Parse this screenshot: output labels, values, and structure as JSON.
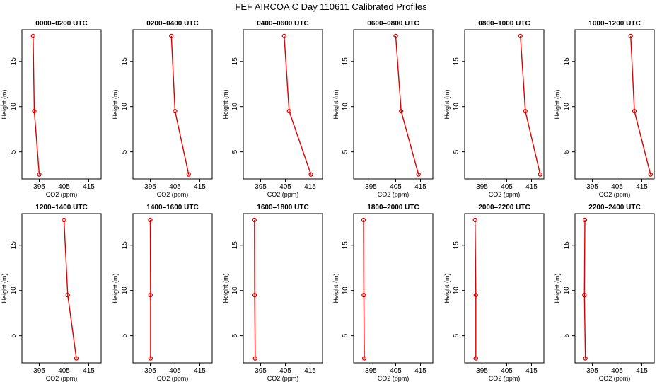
{
  "figure_title": "FEF AIRCOA C  Day 110611  Calibrated Profiles",
  "chart_data": [
    {
      "type": "line",
      "title": "0000–0200 UTC",
      "xlabel": "CO2 (ppm)",
      "ylabel": "Height (m)",
      "xticks": [
        395,
        405,
        415
      ],
      "yticks": [
        5,
        10,
        15
      ],
      "xlim": [
        388,
        420
      ],
      "ylim": [
        2,
        18.5
      ],
      "grid": false,
      "series": [
        {
          "color": "#dd0000",
          "x": [
            392.5,
            393.0,
            395.0
          ],
          "y": [
            17.8,
            9.5,
            2.5
          ]
        }
      ]
    },
    {
      "type": "line",
      "title": "0200–0400 UTC",
      "xlabel": "CO2 (ppm)",
      "ylabel": "Height (m)",
      "xticks": [
        395,
        405,
        415
      ],
      "yticks": [
        5,
        10,
        15
      ],
      "xlim": [
        388,
        420
      ],
      "ylim": [
        2,
        18.5
      ],
      "grid": false,
      "series": [
        {
          "color": "#dd0000",
          "x": [
            403.5,
            405.0,
            410.5
          ],
          "y": [
            17.8,
            9.5,
            2.5
          ]
        }
      ]
    },
    {
      "type": "line",
      "title": "0400–0600 UTC",
      "xlabel": "CO2 (ppm)",
      "ylabel": "Height (m)",
      "xticks": [
        395,
        405,
        415
      ],
      "yticks": [
        5,
        10,
        15
      ],
      "xlim": [
        388,
        420
      ],
      "ylim": [
        2,
        18.5
      ],
      "grid": false,
      "series": [
        {
          "color": "#dd0000",
          "x": [
            404.5,
            406.5,
            415.3
          ],
          "y": [
            17.8,
            9.5,
            2.5
          ]
        }
      ]
    },
    {
      "type": "line",
      "title": "0600–0800 UTC",
      "xlabel": "CO2 (ppm)",
      "ylabel": "Height (m)",
      "xticks": [
        395,
        405,
        415
      ],
      "yticks": [
        5,
        10,
        15
      ],
      "xlim": [
        388,
        420
      ],
      "ylim": [
        2,
        18.5
      ],
      "grid": false,
      "series": [
        {
          "color": "#dd0000",
          "x": [
            405.0,
            407.2,
            414.2
          ],
          "y": [
            17.8,
            9.5,
            2.5
          ]
        }
      ]
    },
    {
      "type": "line",
      "title": "0800–1000 UTC",
      "xlabel": "CO2 (ppm)",
      "ylabel": "Height (m)",
      "xticks": [
        395,
        405,
        415
      ],
      "yticks": [
        5,
        10,
        15
      ],
      "xlim": [
        388,
        420
      ],
      "ylim": [
        2,
        18.5
      ],
      "grid": false,
      "series": [
        {
          "color": "#dd0000",
          "x": [
            410.5,
            412.5,
            418.5
          ],
          "y": [
            17.8,
            9.5,
            2.5
          ]
        }
      ]
    },
    {
      "type": "line",
      "title": "1000–1200 UTC",
      "xlabel": "CO2 (ppm)",
      "ylabel": "Height (m)",
      "xticks": [
        395,
        405,
        415
      ],
      "yticks": [
        5,
        10,
        15
      ],
      "xlim": [
        388,
        420
      ],
      "ylim": [
        2,
        18.5
      ],
      "grid": false,
      "series": [
        {
          "color": "#dd0000",
          "x": [
            410.5,
            412.0,
            418.5
          ],
          "y": [
            17.8,
            9.5,
            2.5
          ]
        }
      ]
    },
    {
      "type": "line",
      "title": "1200–1400 UTC",
      "xlabel": "CO2 (ppm)",
      "ylabel": "Height (m)",
      "xticks": [
        395,
        405,
        415
      ],
      "yticks": [
        5,
        10,
        15
      ],
      "xlim": [
        388,
        420
      ],
      "ylim": [
        2,
        18.5
      ],
      "grid": false,
      "series": [
        {
          "color": "#dd0000",
          "x": [
            405.0,
            406.5,
            410.0
          ],
          "y": [
            17.8,
            9.5,
            2.5
          ]
        }
      ]
    },
    {
      "type": "line",
      "title": "1400–1600 UTC",
      "xlabel": "CO2 (ppm)",
      "ylabel": "Height (m)",
      "xticks": [
        395,
        405,
        415
      ],
      "yticks": [
        5,
        10,
        15
      ],
      "xlim": [
        388,
        420
      ],
      "ylim": [
        2,
        18.5
      ],
      "grid": false,
      "series": [
        {
          "color": "#dd0000",
          "x": [
            395.0,
            395.1,
            395.1
          ],
          "y": [
            17.8,
            9.5,
            2.5
          ]
        }
      ]
    },
    {
      "type": "line",
      "title": "1600–1800 UTC",
      "xlabel": "CO2 (ppm)",
      "ylabel": "Height (m)",
      "xticks": [
        395,
        405,
        415
      ],
      "yticks": [
        5,
        10,
        15
      ],
      "xlim": [
        388,
        420
      ],
      "ylim": [
        2,
        18.5
      ],
      "grid": false,
      "series": [
        {
          "color": "#dd0000",
          "x": [
            392.5,
            392.6,
            392.8
          ],
          "y": [
            17.8,
            9.5,
            2.5
          ]
        }
      ]
    },
    {
      "type": "line",
      "title": "1800–2000 UTC",
      "xlabel": "CO2 (ppm)",
      "ylabel": "Height (m)",
      "xticks": [
        395,
        405,
        415
      ],
      "yticks": [
        5,
        10,
        15
      ],
      "xlim": [
        388,
        420
      ],
      "ylim": [
        2,
        18.5
      ],
      "grid": false,
      "series": [
        {
          "color": "#dd0000",
          "x": [
            392.0,
            392.1,
            392.3
          ],
          "y": [
            17.8,
            9.5,
            2.5
          ]
        }
      ]
    },
    {
      "type": "line",
      "title": "2000–2200 UTC",
      "xlabel": "CO2 (ppm)",
      "ylabel": "Height (m)",
      "xticks": [
        395,
        405,
        415
      ],
      "yticks": [
        5,
        10,
        15
      ],
      "xlim": [
        388,
        420
      ],
      "ylim": [
        2,
        18.5
      ],
      "grid": false,
      "series": [
        {
          "color": "#dd0000",
          "x": [
            392.2,
            392.5,
            392.5
          ],
          "y": [
            17.8,
            9.5,
            2.5
          ]
        }
      ]
    },
    {
      "type": "line",
      "title": "2200–2400 UTC",
      "xlabel": "CO2 (ppm)",
      "ylabel": "Height (m)",
      "xticks": [
        395,
        405,
        415
      ],
      "yticks": [
        5,
        10,
        15
      ],
      "xlim": [
        388,
        420
      ],
      "ylim": [
        2,
        18.5
      ],
      "grid": false,
      "series": [
        {
          "color": "#dd0000",
          "x": [
            392.0,
            391.8,
            392.2
          ],
          "y": [
            17.8,
            9.5,
            2.5
          ]
        }
      ]
    }
  ]
}
